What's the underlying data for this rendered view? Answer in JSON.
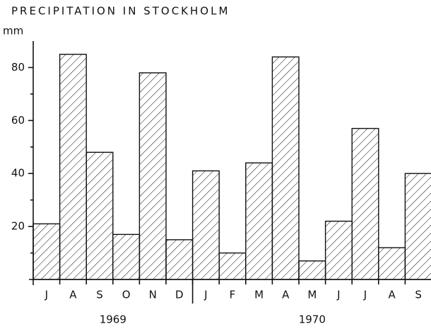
{
  "chart_data": {
    "type": "bar",
    "title": "PRECIPITATION IN STOCKHOLM",
    "y_label": "mm",
    "groups": [
      {
        "name": "1969",
        "categories": [
          "J",
          "A",
          "S",
          "O",
          "N",
          "D"
        ],
        "values": [
          21,
          85,
          48,
          17,
          78,
          15
        ]
      },
      {
        "name": "1970",
        "categories": [
          "J",
          "F",
          "M",
          "A",
          "M",
          "J",
          "J",
          "A",
          "S"
        ],
        "values": [
          41,
          10,
          44,
          84,
          7,
          22,
          57,
          12,
          40
        ]
      }
    ],
    "color": "#111111",
    "hatch": true,
    "ylim": [
      0,
      90
    ],
    "yticks": [
      20,
      40,
      60,
      80
    ],
    "minor_yticks": [
      10,
      30,
      50,
      70
    ]
  }
}
